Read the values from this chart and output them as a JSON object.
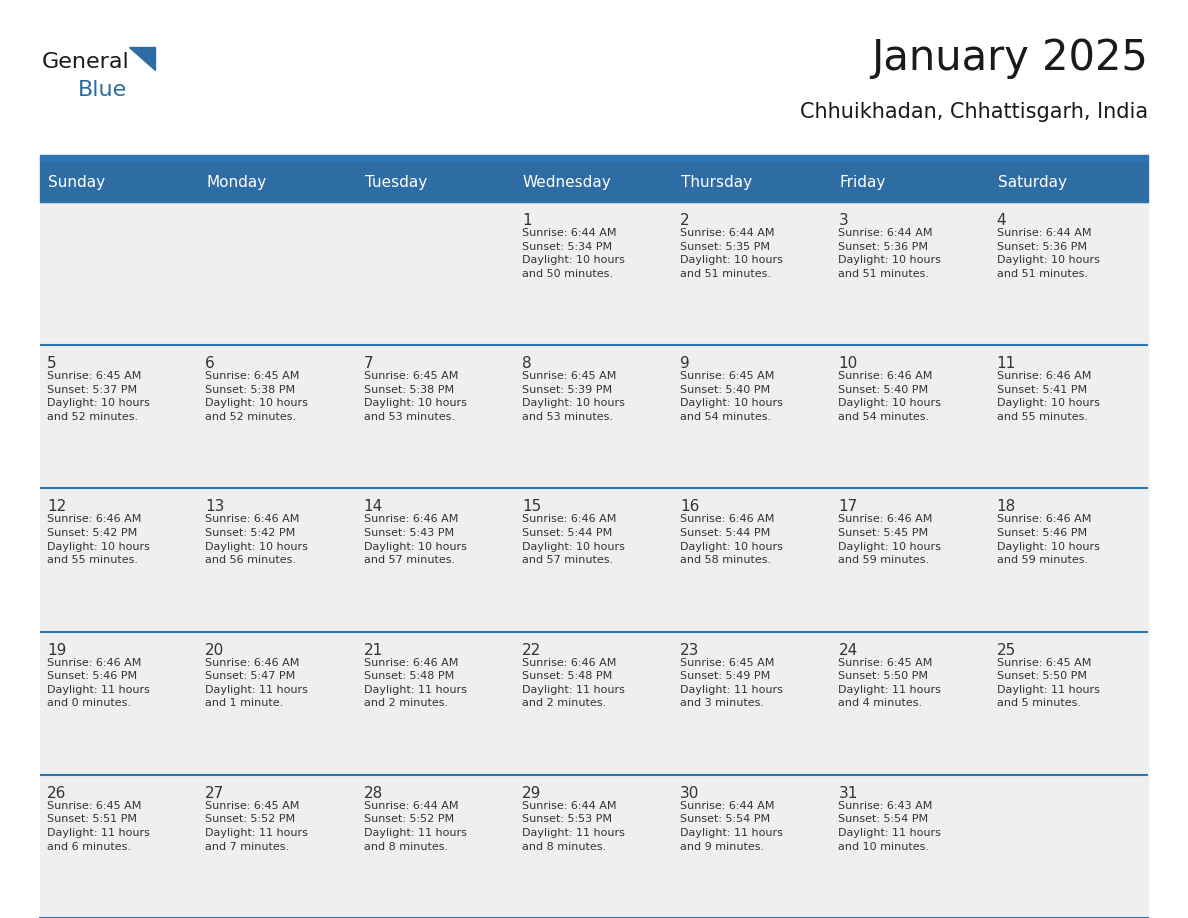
{
  "title": "January 2025",
  "subtitle": "Chhuikhadan, Chhattisgarh, India",
  "days_of_week": [
    "Sunday",
    "Monday",
    "Tuesday",
    "Wednesday",
    "Thursday",
    "Friday",
    "Saturday"
  ],
  "header_bg": "#2E6DA4",
  "header_text": "#FFFFFF",
  "cell_bg": "#EFEFEF",
  "separator_color": "#2E75B6",
  "title_color": "#1a1a1a",
  "text_color": "#333333",
  "logo_general_color": "#1a1a1a",
  "logo_blue_color": "#2E6DA4",
  "calendar_data": [
    [
      {
        "day": "",
        "info": ""
      },
      {
        "day": "",
        "info": ""
      },
      {
        "day": "",
        "info": ""
      },
      {
        "day": "1",
        "info": "Sunrise: 6:44 AM\nSunset: 5:34 PM\nDaylight: 10 hours\nand 50 minutes."
      },
      {
        "day": "2",
        "info": "Sunrise: 6:44 AM\nSunset: 5:35 PM\nDaylight: 10 hours\nand 51 minutes."
      },
      {
        "day": "3",
        "info": "Sunrise: 6:44 AM\nSunset: 5:36 PM\nDaylight: 10 hours\nand 51 minutes."
      },
      {
        "day": "4",
        "info": "Sunrise: 6:44 AM\nSunset: 5:36 PM\nDaylight: 10 hours\nand 51 minutes."
      }
    ],
    [
      {
        "day": "5",
        "info": "Sunrise: 6:45 AM\nSunset: 5:37 PM\nDaylight: 10 hours\nand 52 minutes."
      },
      {
        "day": "6",
        "info": "Sunrise: 6:45 AM\nSunset: 5:38 PM\nDaylight: 10 hours\nand 52 minutes."
      },
      {
        "day": "7",
        "info": "Sunrise: 6:45 AM\nSunset: 5:38 PM\nDaylight: 10 hours\nand 53 minutes."
      },
      {
        "day": "8",
        "info": "Sunrise: 6:45 AM\nSunset: 5:39 PM\nDaylight: 10 hours\nand 53 minutes."
      },
      {
        "day": "9",
        "info": "Sunrise: 6:45 AM\nSunset: 5:40 PM\nDaylight: 10 hours\nand 54 minutes."
      },
      {
        "day": "10",
        "info": "Sunrise: 6:46 AM\nSunset: 5:40 PM\nDaylight: 10 hours\nand 54 minutes."
      },
      {
        "day": "11",
        "info": "Sunrise: 6:46 AM\nSunset: 5:41 PM\nDaylight: 10 hours\nand 55 minutes."
      }
    ],
    [
      {
        "day": "12",
        "info": "Sunrise: 6:46 AM\nSunset: 5:42 PM\nDaylight: 10 hours\nand 55 minutes."
      },
      {
        "day": "13",
        "info": "Sunrise: 6:46 AM\nSunset: 5:42 PM\nDaylight: 10 hours\nand 56 minutes."
      },
      {
        "day": "14",
        "info": "Sunrise: 6:46 AM\nSunset: 5:43 PM\nDaylight: 10 hours\nand 57 minutes."
      },
      {
        "day": "15",
        "info": "Sunrise: 6:46 AM\nSunset: 5:44 PM\nDaylight: 10 hours\nand 57 minutes."
      },
      {
        "day": "16",
        "info": "Sunrise: 6:46 AM\nSunset: 5:44 PM\nDaylight: 10 hours\nand 58 minutes."
      },
      {
        "day": "17",
        "info": "Sunrise: 6:46 AM\nSunset: 5:45 PM\nDaylight: 10 hours\nand 59 minutes."
      },
      {
        "day": "18",
        "info": "Sunrise: 6:46 AM\nSunset: 5:46 PM\nDaylight: 10 hours\nand 59 minutes."
      }
    ],
    [
      {
        "day": "19",
        "info": "Sunrise: 6:46 AM\nSunset: 5:46 PM\nDaylight: 11 hours\nand 0 minutes."
      },
      {
        "day": "20",
        "info": "Sunrise: 6:46 AM\nSunset: 5:47 PM\nDaylight: 11 hours\nand 1 minute."
      },
      {
        "day": "21",
        "info": "Sunrise: 6:46 AM\nSunset: 5:48 PM\nDaylight: 11 hours\nand 2 minutes."
      },
      {
        "day": "22",
        "info": "Sunrise: 6:46 AM\nSunset: 5:48 PM\nDaylight: 11 hours\nand 2 minutes."
      },
      {
        "day": "23",
        "info": "Sunrise: 6:45 AM\nSunset: 5:49 PM\nDaylight: 11 hours\nand 3 minutes."
      },
      {
        "day": "24",
        "info": "Sunrise: 6:45 AM\nSunset: 5:50 PM\nDaylight: 11 hours\nand 4 minutes."
      },
      {
        "day": "25",
        "info": "Sunrise: 6:45 AM\nSunset: 5:50 PM\nDaylight: 11 hours\nand 5 minutes."
      }
    ],
    [
      {
        "day": "26",
        "info": "Sunrise: 6:45 AM\nSunset: 5:51 PM\nDaylight: 11 hours\nand 6 minutes."
      },
      {
        "day": "27",
        "info": "Sunrise: 6:45 AM\nSunset: 5:52 PM\nDaylight: 11 hours\nand 7 minutes."
      },
      {
        "day": "28",
        "info": "Sunrise: 6:44 AM\nSunset: 5:52 PM\nDaylight: 11 hours\nand 8 minutes."
      },
      {
        "day": "29",
        "info": "Sunrise: 6:44 AM\nSunset: 5:53 PM\nDaylight: 11 hours\nand 8 minutes."
      },
      {
        "day": "30",
        "info": "Sunrise: 6:44 AM\nSunset: 5:54 PM\nDaylight: 11 hours\nand 9 minutes."
      },
      {
        "day": "31",
        "info": "Sunrise: 6:43 AM\nSunset: 5:54 PM\nDaylight: 11 hours\nand 10 minutes."
      },
      {
        "day": "",
        "info": ""
      }
    ]
  ]
}
